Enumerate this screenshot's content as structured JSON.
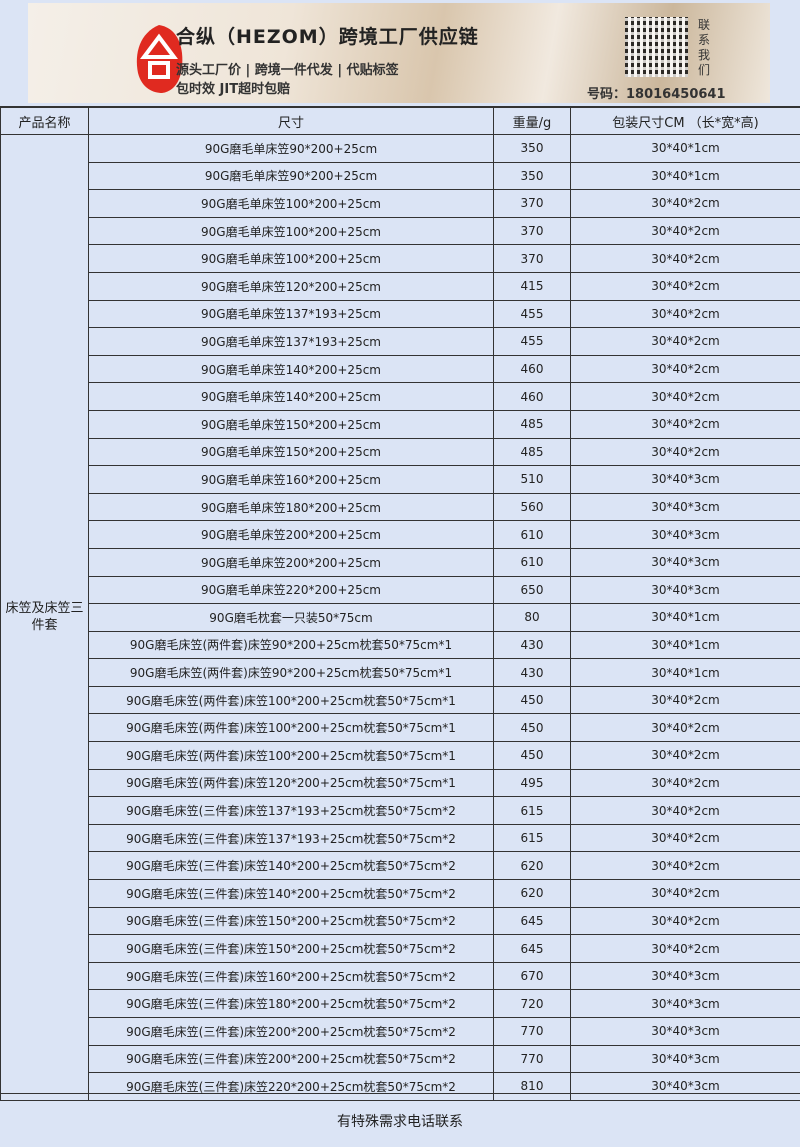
{
  "banner": {
    "logo_text": "合",
    "title": "合纵（HEZOM）跨境工厂供应链",
    "subtitle1": "源头工厂价 | 跨境一件代发 | 代贴标签",
    "subtitle2": "包时效 JIT超时包赔",
    "contact": "联系我们",
    "phone": "号码：18016450641"
  },
  "table": {
    "headers": [
      "产品名称",
      "尺寸",
      "重量/g",
      "包装尺寸CM （长*宽*高)"
    ],
    "category": "床笠及床笠三件套",
    "rows": [
      [
        "90G磨毛单床笠90*200+25cm",
        "350",
        "30*40*1cm"
      ],
      [
        "90G磨毛单床笠90*200+25cm",
        "350",
        "30*40*1cm"
      ],
      [
        "90G磨毛单床笠100*200+25cm",
        "370",
        "30*40*2cm"
      ],
      [
        "90G磨毛单床笠100*200+25cm",
        "370",
        "30*40*2cm"
      ],
      [
        "90G磨毛单床笠100*200+25cm",
        "370",
        "30*40*2cm"
      ],
      [
        "90G磨毛单床笠120*200+25cm",
        "415",
        "30*40*2cm"
      ],
      [
        "90G磨毛单床笠137*193+25cm",
        "455",
        "30*40*2cm"
      ],
      [
        "90G磨毛单床笠137*193+25cm",
        "455",
        "30*40*2cm"
      ],
      [
        "90G磨毛单床笠140*200+25cm",
        "460",
        "30*40*2cm"
      ],
      [
        "90G磨毛单床笠140*200+25cm",
        "460",
        "30*40*2cm"
      ],
      [
        "90G磨毛单床笠150*200+25cm",
        "485",
        "30*40*2cm"
      ],
      [
        "90G磨毛单床笠150*200+25cm",
        "485",
        "30*40*2cm"
      ],
      [
        "90G磨毛单床笠160*200+25cm",
        "510",
        "30*40*3cm"
      ],
      [
        "90G磨毛单床笠180*200+25cm",
        "560",
        "30*40*3cm"
      ],
      [
        "90G磨毛单床笠200*200+25cm",
        "610",
        "30*40*3cm"
      ],
      [
        "90G磨毛单床笠200*200+25cm",
        "610",
        "30*40*3cm"
      ],
      [
        "90G磨毛单床笠220*200+25cm",
        "650",
        "30*40*3cm"
      ],
      [
        "90G磨毛枕套一只装50*75cm",
        "80",
        "30*40*1cm"
      ],
      [
        "90G磨毛床笠(两件套)床笠90*200+25cm枕套50*75cm*1",
        "430",
        "30*40*1cm"
      ],
      [
        "90G磨毛床笠(两件套)床笠90*200+25cm枕套50*75cm*1",
        "430",
        "30*40*1cm"
      ],
      [
        "90G磨毛床笠(两件套)床笠100*200+25cm枕套50*75cm*1",
        "450",
        "30*40*2cm"
      ],
      [
        "90G磨毛床笠(两件套)床笠100*200+25cm枕套50*75cm*1",
        "450",
        "30*40*2cm"
      ],
      [
        "90G磨毛床笠(两件套)床笠100*200+25cm枕套50*75cm*1",
        "450",
        "30*40*2cm"
      ],
      [
        "90G磨毛床笠(两件套)床笠120*200+25cm枕套50*75cm*1",
        "495",
        "30*40*2cm"
      ],
      [
        "90G磨毛床笠(三件套)床笠137*193+25cm枕套50*75cm*2",
        "615",
        "30*40*2cm"
      ],
      [
        "90G磨毛床笠(三件套)床笠137*193+25cm枕套50*75cm*2",
        "615",
        "30*40*2cm"
      ],
      [
        "90G磨毛床笠(三件套)床笠140*200+25cm枕套50*75cm*2",
        "620",
        "30*40*2cm"
      ],
      [
        "90G磨毛床笠(三件套)床笠140*200+25cm枕套50*75cm*2",
        "620",
        "30*40*2cm"
      ],
      [
        "90G磨毛床笠(三件套)床笠150*200+25cm枕套50*75cm*2",
        "645",
        "30*40*2cm"
      ],
      [
        "90G磨毛床笠(三件套)床笠150*200+25cm枕套50*75cm*2",
        "645",
        "30*40*2cm"
      ],
      [
        "90G磨毛床笠(三件套)床笠160*200+25cm枕套50*75cm*2",
        "670",
        "30*40*3cm"
      ],
      [
        "90G磨毛床笠(三件套)床笠180*200+25cm枕套50*75cm*2",
        "720",
        "30*40*3cm"
      ],
      [
        "90G磨毛床笠(三件套)床笠200*200+25cm枕套50*75cm*2",
        "770",
        "30*40*3cm"
      ],
      [
        "90G磨毛床笠(三件套)床笠200*200+25cm枕套50*75cm*2",
        "770",
        "30*40*3cm"
      ],
      [
        "90G磨毛床笠(三件套)床笠220*200+25cm枕套50*75cm*2",
        "810",
        "30*40*3cm"
      ]
    ]
  },
  "footer": "有特殊需求电话联系",
  "colors": {
    "background": "#dbe4f5",
    "logo_red": "#e02a20"
  }
}
